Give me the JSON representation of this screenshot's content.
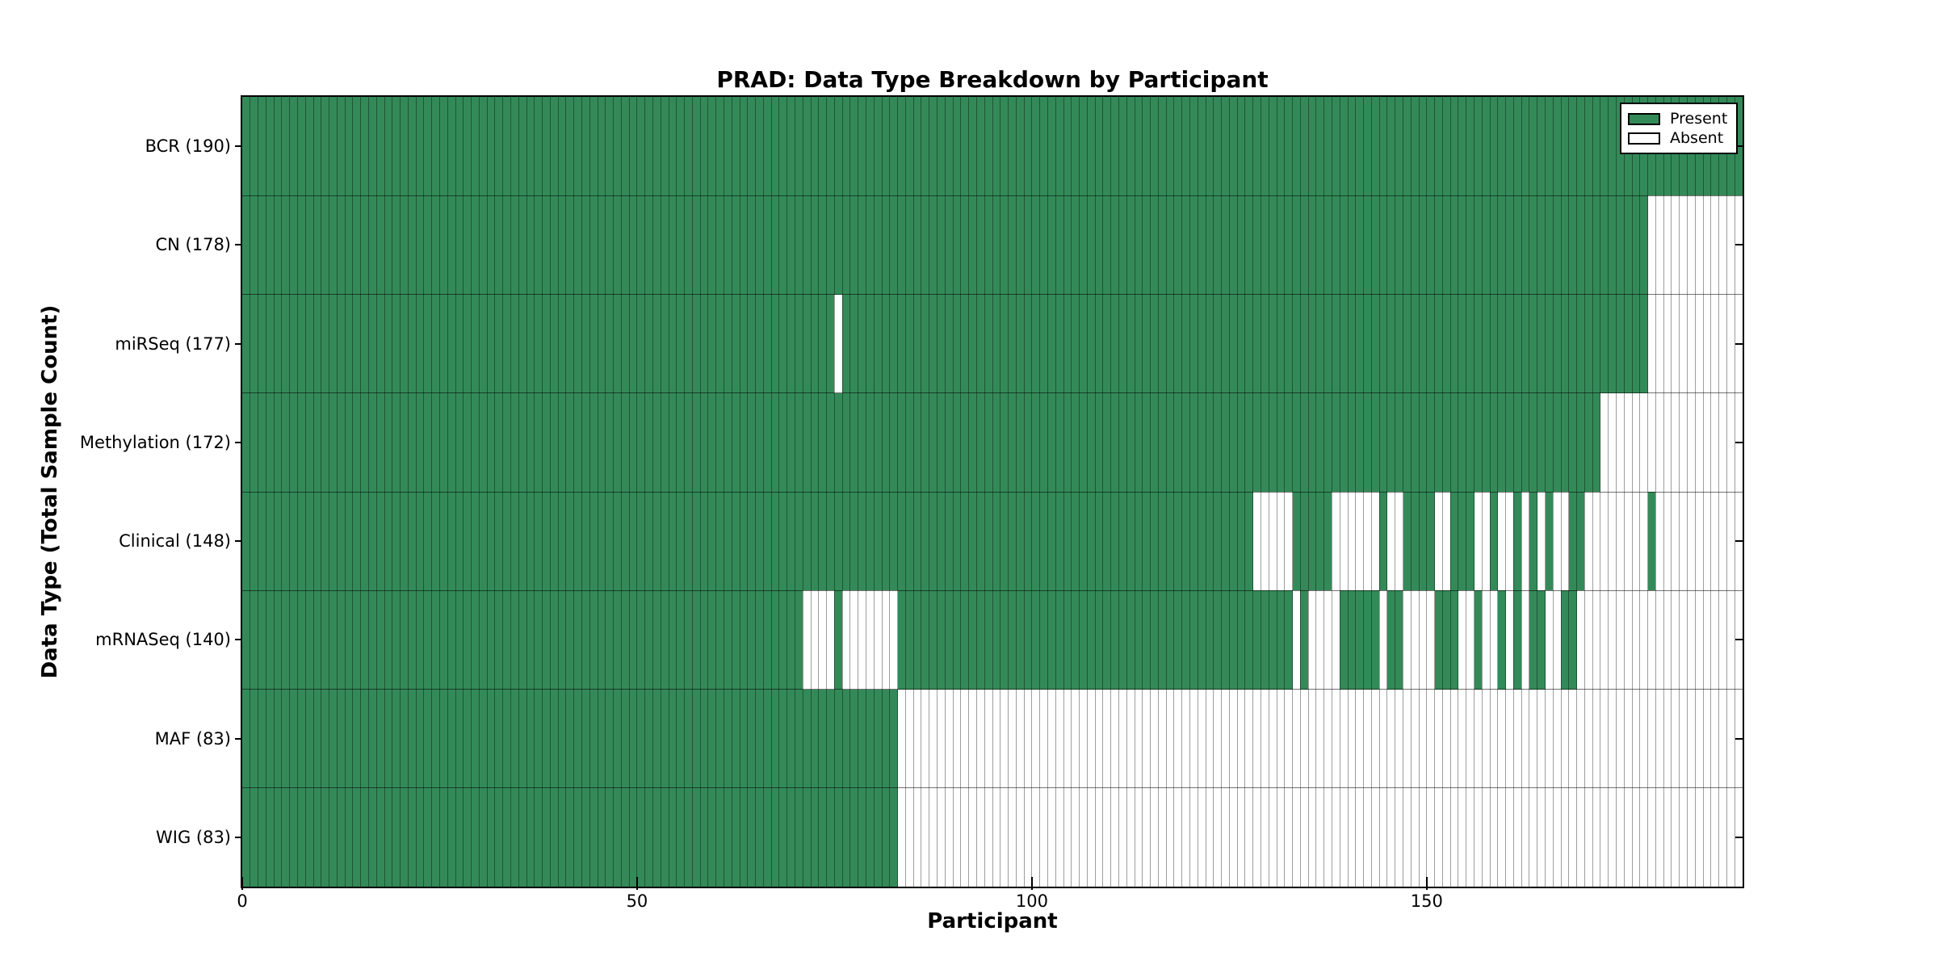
{
  "colors": {
    "present": "#338a58",
    "absent": "#ffffff",
    "grid_line": "#8c8c8c",
    "axis": "#000000"
  },
  "chart_data": {
    "type": "heatmap",
    "title": "PRAD: Data Type Breakdown by Participant",
    "xlabel": "Participant",
    "ylabel": "Data Type (Total Sample Count)",
    "legend": {
      "present": "Present",
      "absent": "Absent"
    },
    "legend_position": "upper right",
    "n_participants": 190,
    "x_ticks": [
      0,
      50,
      100,
      150
    ],
    "x_range": [
      0,
      190
    ],
    "grid": "per-cell vertical lines, per-row horizontal separators",
    "rows": [
      {
        "label": "BCR",
        "count": 190,
        "present_runs": [
          [
            0,
            189
          ]
        ]
      },
      {
        "label": "CN",
        "count": 178,
        "present_runs": [
          [
            0,
            177
          ]
        ]
      },
      {
        "label": "miRSeq",
        "count": 177,
        "present_runs": [
          [
            0,
            74
          ],
          [
            76,
            177
          ]
        ]
      },
      {
        "label": "Methylation",
        "count": 172,
        "present_runs": [
          [
            0,
            171
          ]
        ]
      },
      {
        "label": "Clinical",
        "count": 148,
        "present_runs": [
          [
            0,
            127
          ],
          [
            133,
            137
          ],
          [
            144,
            144
          ],
          [
            147,
            150
          ],
          [
            153,
            155
          ],
          [
            158,
            158
          ],
          [
            161,
            161
          ],
          [
            163,
            163
          ],
          [
            165,
            165
          ],
          [
            168,
            169
          ],
          [
            178,
            178
          ]
        ]
      },
      {
        "label": "mRNASeq",
        "count": 140,
        "present_runs": [
          [
            0,
            70
          ],
          [
            75,
            75
          ],
          [
            83,
            132
          ],
          [
            134,
            134
          ],
          [
            139,
            143
          ],
          [
            145,
            146
          ],
          [
            151,
            153
          ],
          [
            156,
            156
          ],
          [
            159,
            159
          ],
          [
            161,
            161
          ],
          [
            163,
            164
          ],
          [
            167,
            168
          ]
        ]
      },
      {
        "label": "MAF",
        "count": 83,
        "present_runs": [
          [
            0,
            82
          ]
        ]
      },
      {
        "label": "WIG",
        "count": 83,
        "present_runs": [
          [
            0,
            82
          ]
        ]
      }
    ]
  }
}
